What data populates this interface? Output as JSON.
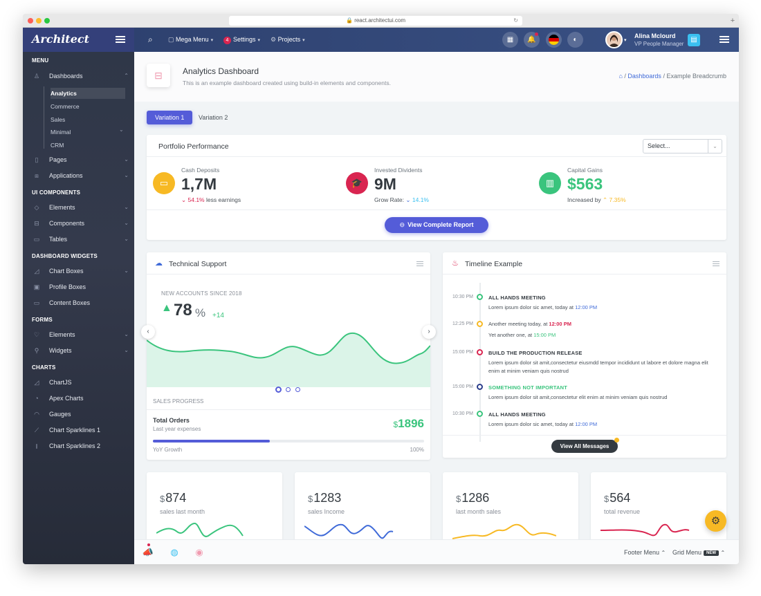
{
  "browser": {
    "url": "react.architectui.com"
  },
  "header": {
    "logo": "Architect",
    "mega_menu": "Mega Menu",
    "settings_badge": "4",
    "settings": "Settings",
    "projects": "Projects",
    "user_name": "Alina Mclourd",
    "user_role": "VP People Manager"
  },
  "sidebar": {
    "menu_heading": "MENU",
    "dashboards": "Dashboards",
    "dash_sub": [
      "Analytics",
      "Commerce",
      "Sales",
      "Minimal",
      "CRM"
    ],
    "pages": "Pages",
    "applications": "Applications",
    "ui_heading": "UI COMPONENTS",
    "elements": "Elements",
    "components": "Components",
    "tables": "Tables",
    "widgets_heading": "DASHBOARD WIDGETS",
    "chart_boxes": "Chart Boxes",
    "profile_boxes": "Profile Boxes",
    "content_boxes": "Content Boxes",
    "forms_heading": "FORMS",
    "form_elements": "Elements",
    "form_widgets": "Widgets",
    "charts_heading": "CHARTS",
    "chartjs": "ChartJS",
    "apex": "Apex Charts",
    "gauges": "Gauges",
    "spark1": "Chart Sparklines 1",
    "spark2": "Chart Sparklines 2"
  },
  "page": {
    "title": "Analytics Dashboard",
    "subtitle": "This is an example dashboard created using build-in elements and components.",
    "crumb_1": "Dashboards",
    "crumb_2": "Example Breadcrumb",
    "tab_1": "Variation 1",
    "tab_2": "Variation 2"
  },
  "portfolio": {
    "title": "Portfolio Performance",
    "select": "Select...",
    "cash_label": "Cash Deposits",
    "cash_value": "1,7M",
    "cash_pct": "54.1%",
    "cash_note": "less earnings",
    "inv_label": "Invested Dividents",
    "inv_value": "9M",
    "inv_note": "Grow Rate:",
    "inv_pct": "14.1%",
    "cap_label": "Capital Gains",
    "cap_value": "$563",
    "cap_note": "Increased by",
    "cap_pct": "7.35%",
    "button": "View Complete Report"
  },
  "support": {
    "title": "Technical Support",
    "new_accounts": "NEW ACCOUNTS SINCE 2018",
    "pct": "78",
    "pct_sign": "%",
    "delta": "+14",
    "sales_progress": "SALES PROGRESS",
    "orders_title": "Total Orders",
    "orders_sub": "Last year expenses",
    "orders_cur": "$",
    "orders_value": "1896",
    "yoy": "YoY Growth",
    "yoy_pct": "100%",
    "progress": 0.43
  },
  "timeline": {
    "title": "Timeline Example",
    "items": [
      {
        "time": "10:30 PM",
        "title": "ALL HANDS MEETING",
        "text": "Lorem ipsum dolor sic amet, today at ",
        "hl": "12:00 PM"
      },
      {
        "time": "12:25 PM",
        "line1": "Another meeting today, at ",
        "hl1": "12:00 PM",
        "line2": "Yet another one, at ",
        "hl2": "15:00 PM"
      },
      {
        "time": "15:00 PM",
        "title": "BUILD THE PRODUCTION RELEASE",
        "text": "Lorem ipsum dolor sit amit,consectetur eiusmdd tempor incididunt ut labore et dolore magna elit enim at minim veniam quis nostrud"
      },
      {
        "time": "15:00 PM",
        "title": "SOMETHING NOT IMPORTANT",
        "text": "Lorem ipsum dolor sit amit,consectetur elit enim at minim veniam quis nostrud"
      },
      {
        "time": "10:30 PM",
        "title": "ALL HANDS MEETING",
        "text": "Lorem ipsum dolor sic amet, today at ",
        "hl": "12:00 PM"
      }
    ],
    "button": "View All Messages"
  },
  "stats": [
    {
      "cur": "$",
      "value": "874",
      "label": "sales last month",
      "color": "#3ac47d"
    },
    {
      "cur": "$",
      "value": "1283",
      "label": "sales Income",
      "color": "#3f6ad8"
    },
    {
      "cur": "$",
      "value": "1286",
      "label": "last month sales",
      "color": "#f7b924"
    },
    {
      "cur": "$",
      "value": "564",
      "label": "total revenue",
      "color": "#d92550"
    }
  ],
  "footer": {
    "footer_menu": "Footer Menu",
    "grid_menu": "Grid Menu",
    "new_badge": "NEW"
  },
  "colors": {
    "primary": "#545cd8",
    "success": "#3ac47d",
    "danger": "#d92550",
    "warning": "#f7b924",
    "info": "#3f6ad8"
  }
}
